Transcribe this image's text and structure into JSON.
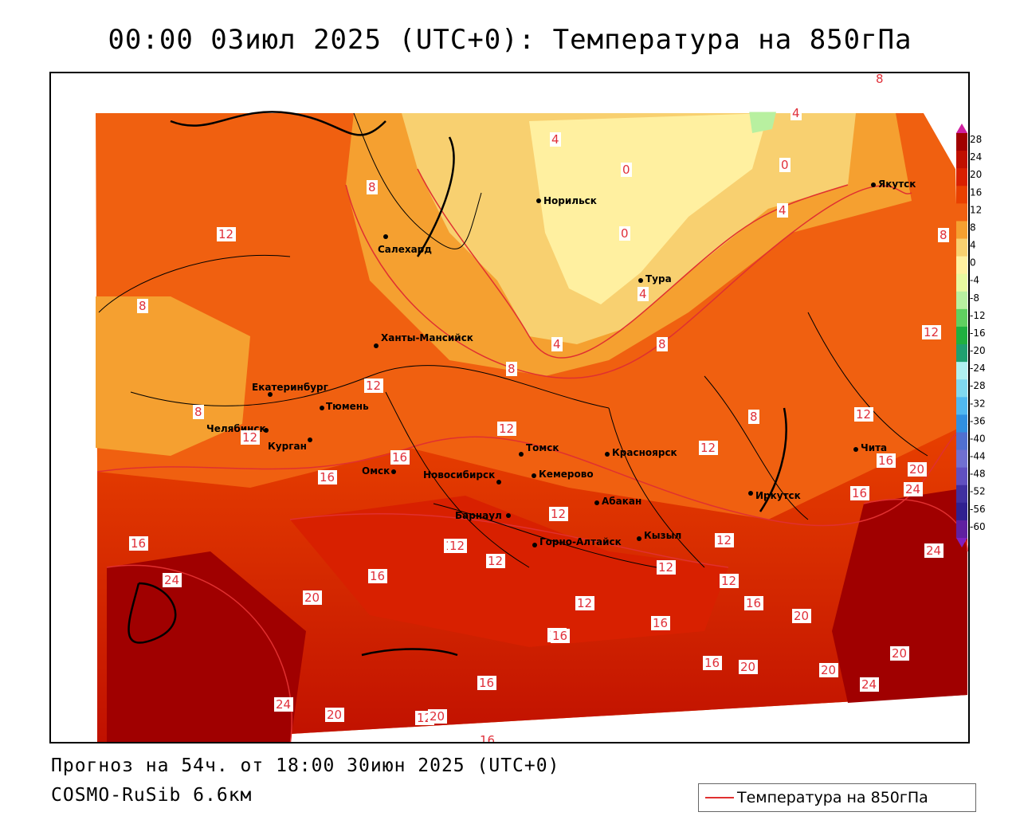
{
  "title": "00:00 03июл 2025 (UTC+0): Температура на 850гПа",
  "footer": {
    "forecast": "Прогноз на 54ч. от 18:00 30июн 2025 (UTC+0)",
    "model": "COSMO-RuSib 6.6км"
  },
  "legend": {
    "label": "Температура на 850гПа",
    "line_color": "#e03030"
  },
  "colorbar": {
    "ticks": [
      "28",
      "24",
      "20",
      "16",
      "12",
      "8",
      "4",
      "0",
      "-4",
      "-8",
      "-12",
      "-16",
      "-20",
      "-24",
      "-28",
      "-32",
      "-36",
      "-40",
      "-44",
      "-48",
      "-52",
      "-56",
      "-60"
    ],
    "colors": [
      "#a00000",
      "#c01000",
      "#d82000",
      "#e84000",
      "#f06010",
      "#f5a030",
      "#f8d070",
      "#fff0a0",
      "#e8f8a0",
      "#b8f0a0",
      "#60d060",
      "#20b040",
      "#20a070",
      "#b0f0f0",
      "#80d8f0",
      "#50b8f0",
      "#3090e0",
      "#5070d0",
      "#7070d0",
      "#6050c0",
      "#4030a0",
      "#302090",
      "#6020a0"
    ]
  },
  "cities": [
    {
      "name": "Норильск"
    },
    {
      "name": "Якутск"
    },
    {
      "name": "Салехард"
    },
    {
      "name": "Тура"
    },
    {
      "name": "Ханты-Мансийск"
    },
    {
      "name": "Екатеринбург"
    },
    {
      "name": "Тюмень"
    },
    {
      "name": "Челябинск"
    },
    {
      "name": "Курган"
    },
    {
      "name": "Омск"
    },
    {
      "name": "Томск"
    },
    {
      "name": "Новосибирск"
    },
    {
      "name": "Кемерово"
    },
    {
      "name": "Красноярск"
    },
    {
      "name": "Барнаул"
    },
    {
      "name": "Абакан"
    },
    {
      "name": "Горно-Алтайск"
    },
    {
      "name": "Кызыл"
    },
    {
      "name": "Иркутск"
    },
    {
      "name": "Чита"
    }
  ],
  "contour_labels": [
    "8",
    "4",
    "4",
    "0",
    "0",
    "8",
    "12",
    "8",
    "0",
    "4",
    "8",
    "4",
    "8",
    "4",
    "12",
    "8",
    "8",
    "12",
    "12",
    "8",
    "12",
    "12",
    "16",
    "12",
    "16",
    "16",
    "12",
    "16",
    "16",
    "20",
    "20",
    "24",
    "24",
    "16",
    "12",
    "12",
    "12",
    "12",
    "12",
    "24",
    "20",
    "16",
    "12",
    "16",
    "20",
    "16",
    "20",
    "24",
    "16",
    "24",
    "20",
    "12",
    "16",
    "16",
    "12",
    "20",
    "20",
    "12"
  ]
}
